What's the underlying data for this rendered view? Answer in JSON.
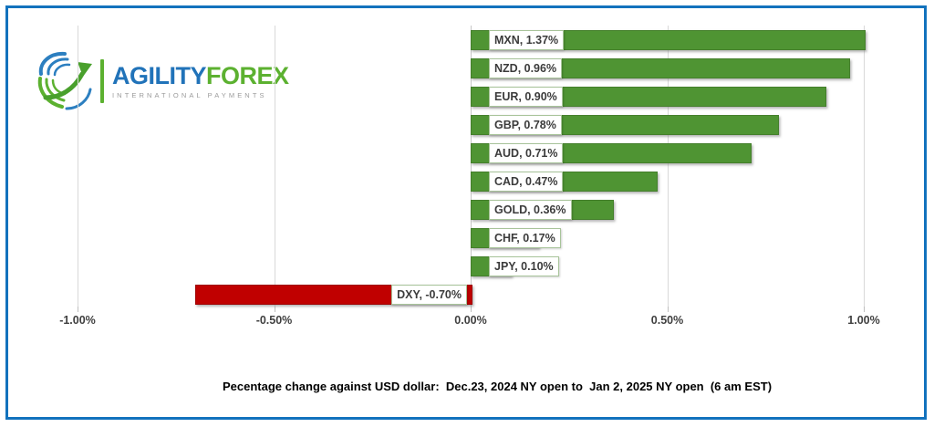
{
  "logo": {
    "brand_primary": "AGILITY",
    "brand_secondary": "FOREX",
    "tagline": "INTERNATIONAL PAYMENTS"
  },
  "colors": {
    "frame_blue": "#1272bd",
    "bar_positive": "#4f9433",
    "bar_negative": "#c00000",
    "label_box_border": "#a8c49a",
    "gridline": "#d9d9d9",
    "axis_text": "#404040",
    "logo_blue": "#2173b9",
    "logo_green": "#5cb130",
    "logo_gray": "#9b9b9b"
  },
  "chart_data": {
    "type": "bar",
    "orientation": "horizontal",
    "categories": [
      "MXN",
      "NZD",
      "EUR",
      "GBP",
      "AUD",
      "CAD",
      "GOLD",
      "CHF",
      "JPY",
      "DXY"
    ],
    "values": [
      1.37,
      0.96,
      0.9,
      0.78,
      0.71,
      0.47,
      0.36,
      0.17,
      0.1,
      -0.7
    ],
    "bar_labels": [
      "MXN, 1.37%",
      "NZD, 0.96%",
      "EUR, 0.90%",
      "GBP, 0.78%",
      "AUD, 0.71%",
      "CAD, 0.47%",
      "GOLD, 0.36%",
      "CHF, 0.17%",
      "JPY, 0.10%",
      "DXY, -0.70%"
    ],
    "x_ticks": [
      -1.0,
      -0.5,
      0,
      0.5,
      1.0
    ],
    "x_tick_labels": [
      "-1.00%",
      "-0.50%",
      "0.00%",
      "0.50%",
      "1.00%"
    ],
    "xlim": [
      -1.0,
      1.0
    ],
    "clip_to_xlim": true,
    "grid": "vertical",
    "legend": "none",
    "title": "",
    "caption": "Pecentage change against USD dollar:  Dec.23, 2024 NY open to  Jan 2, 2025 NY open  (6 am EST)"
  }
}
